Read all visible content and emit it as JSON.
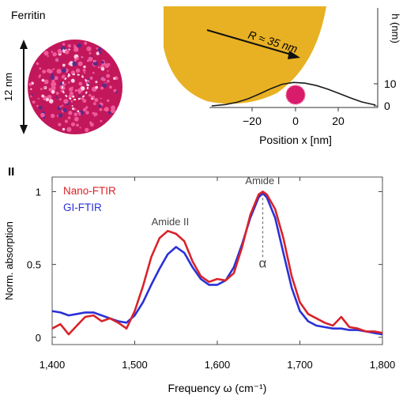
{
  "colors": {
    "ferritin": "#d81b6b",
    "tip": "#e8b123",
    "profile": "#1a1a1a",
    "nano_ftir": "#d9232a",
    "gi_ftir": "#2a31d6",
    "axis": "#333333"
  },
  "panel_a": {
    "ferritin_label": "Ferritin",
    "scale_label": "12 nm",
    "tip_radius_label": "R ≈ 35 nm",
    "h_axis_label": "h (nm)",
    "h_ticks": [
      0,
      10
    ],
    "h_tick_labels": [
      "0",
      "10"
    ],
    "x_ticks": [
      -20,
      0,
      20
    ],
    "x_tick_labels": [
      "−20",
      "0",
      "20"
    ],
    "x_axis_label": "Position x [nm]",
    "profile": {
      "x": [
        -36,
        -30,
        -25,
        -20,
        -15,
        -10,
        -5,
        0,
        5,
        10,
        15,
        20,
        25,
        30,
        36
      ],
      "h": [
        0,
        0.6,
        1.6,
        3.2,
        5.4,
        7.8,
        9.8,
        10.6,
        10.3,
        9.2,
        7.6,
        5.6,
        3.6,
        1.8,
        0.4
      ]
    },
    "x_range": [
      -37,
      37
    ],
    "h_range": [
      0,
      36
    ]
  },
  "panel_b_marker": "II",
  "chart_data": {
    "type": "line",
    "xlabel": "Frequency ω (cm⁻¹)",
    "ylabel": "Norm. absorption",
    "xlim": [
      1400,
      1800
    ],
    "ylim": [
      -0.05,
      1.1
    ],
    "xticks": [
      1400,
      1500,
      1600,
      1700,
      1800
    ],
    "xtick_labels": [
      "1,400",
      "1,500",
      "1,600",
      "1,700",
      "1,800"
    ],
    "yticks": [
      0,
      0.5,
      1
    ],
    "ytick_labels": [
      "0",
      "0.5",
      "1"
    ],
    "legend_position": "top-left",
    "annotations": [
      {
        "text": "Amide II",
        "x": 1543,
        "y": 0.77
      },
      {
        "text": "Amide I",
        "x": 1655,
        "y": 1.05
      },
      {
        "text": "α",
        "x": 1655,
        "y": 0.48
      }
    ],
    "marker_line": {
      "x": 1655,
      "y_from": 0.55,
      "y_to": 0.99
    },
    "series": [
      {
        "name": "Nano-FTIR",
        "color": "#d9232a",
        "x": [
          1400,
          1410,
          1420,
          1430,
          1440,
          1450,
          1460,
          1470,
          1480,
          1490,
          1500,
          1510,
          1520,
          1530,
          1540,
          1550,
          1560,
          1570,
          1580,
          1590,
          1600,
          1610,
          1620,
          1630,
          1640,
          1650,
          1655,
          1660,
          1670,
          1680,
          1690,
          1700,
          1710,
          1720,
          1730,
          1740,
          1750,
          1760,
          1770,
          1780,
          1790,
          1800
        ],
        "y": [
          0.06,
          0.09,
          0.02,
          0.08,
          0.14,
          0.15,
          0.11,
          0.13,
          0.1,
          0.06,
          0.18,
          0.35,
          0.55,
          0.68,
          0.73,
          0.71,
          0.66,
          0.52,
          0.42,
          0.38,
          0.4,
          0.39,
          0.44,
          0.62,
          0.84,
          0.98,
          1.0,
          0.98,
          0.88,
          0.68,
          0.42,
          0.24,
          0.16,
          0.13,
          0.1,
          0.08,
          0.14,
          0.07,
          0.06,
          0.04,
          0.04,
          0.03
        ]
      },
      {
        "name": "GI-FTIR",
        "color": "#2a31d6",
        "x": [
          1400,
          1410,
          1420,
          1430,
          1440,
          1450,
          1460,
          1470,
          1480,
          1490,
          1500,
          1510,
          1520,
          1530,
          1540,
          1550,
          1560,
          1570,
          1580,
          1590,
          1600,
          1610,
          1620,
          1630,
          1640,
          1650,
          1655,
          1660,
          1670,
          1680,
          1690,
          1700,
          1710,
          1720,
          1730,
          1740,
          1750,
          1760,
          1770,
          1780,
          1790,
          1800
        ],
        "y": [
          0.18,
          0.17,
          0.15,
          0.16,
          0.17,
          0.17,
          0.15,
          0.13,
          0.11,
          0.1,
          0.15,
          0.24,
          0.36,
          0.47,
          0.57,
          0.62,
          0.58,
          0.48,
          0.4,
          0.36,
          0.36,
          0.39,
          0.48,
          0.64,
          0.82,
          0.96,
          0.99,
          0.96,
          0.82,
          0.58,
          0.34,
          0.18,
          0.11,
          0.08,
          0.07,
          0.06,
          0.06,
          0.05,
          0.05,
          0.04,
          0.03,
          0.02
        ]
      }
    ]
  }
}
